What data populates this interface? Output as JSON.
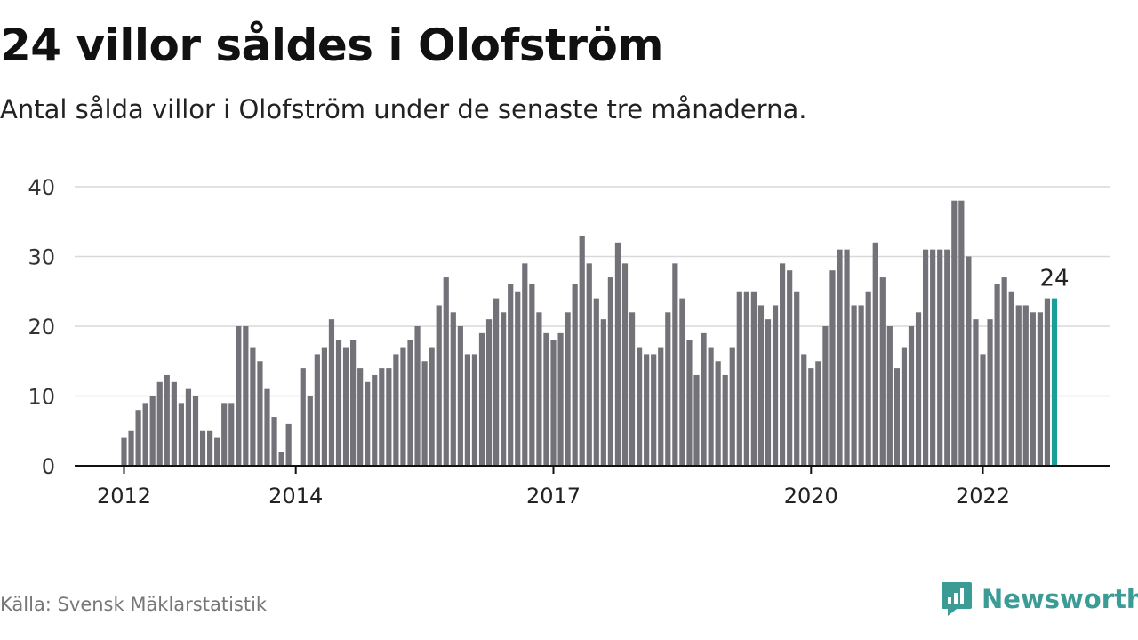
{
  "title": "24 villor såldes i Olofström",
  "subtitle": "Antal sålda villor i Olofström under de senaste tre månaderna.",
  "source": "Källa: Svensk Mäklarstatistik",
  "brand": {
    "name": "Newsworthy",
    "icon": "newsworthy-logo-icon",
    "color": "#3b9b95"
  },
  "colors": {
    "bar": "#737279",
    "highlight": "#1a9e98",
    "grid": "#d9d9d9",
    "axis": "#111111"
  },
  "chart_data": {
    "type": "bar",
    "ylim": [
      0,
      40
    ],
    "yticks": [
      0,
      10,
      20,
      30,
      40
    ],
    "grid": true,
    "x_start": "2012-01",
    "xticks": [
      {
        "label": "2012",
        "date": "2012-01"
      },
      {
        "label": "2014",
        "date": "2014-01"
      },
      {
        "label": "2017",
        "date": "2017-01"
      },
      {
        "label": "2020",
        "date": "2020-01"
      },
      {
        "label": "2022",
        "date": "2022-01"
      }
    ],
    "values": [
      4,
      5,
      8,
      9,
      10,
      12,
      13,
      12,
      9,
      11,
      10,
      5,
      5,
      4,
      9,
      9,
      20,
      20,
      17,
      15,
      11,
      7,
      2,
      6,
      0,
      14,
      10,
      16,
      17,
      21,
      18,
      17,
      18,
      14,
      12,
      13,
      14,
      14,
      16,
      17,
      18,
      20,
      15,
      17,
      23,
      27,
      22,
      20,
      16,
      16,
      19,
      21,
      24,
      22,
      26,
      25,
      29,
      26,
      22,
      19,
      18,
      19,
      22,
      26,
      33,
      29,
      24,
      21,
      27,
      32,
      29,
      22,
      17,
      16,
      16,
      17,
      22,
      29,
      24,
      18,
      13,
      19,
      17,
      15,
      13,
      17,
      25,
      25,
      25,
      23,
      21,
      23,
      29,
      28,
      25,
      16,
      14,
      15,
      20,
      28,
      31,
      31,
      23,
      23,
      25,
      32,
      27,
      20,
      14,
      17,
      20,
      22,
      31,
      31,
      31,
      31,
      38,
      38,
      30,
      21,
      16,
      21,
      26,
      27,
      25,
      23,
      23,
      22,
      22,
      24,
      24
    ],
    "highlight_last": true,
    "annotation": "24"
  }
}
